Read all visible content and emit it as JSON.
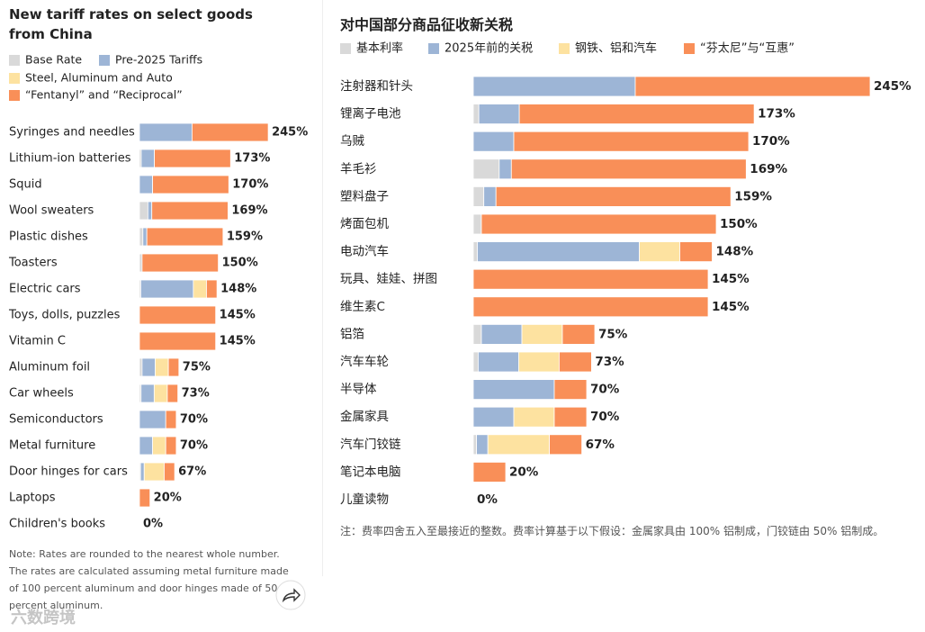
{
  "chart_data": [
    {
      "type": "bar",
      "orientation": "horizontal",
      "stacked": true,
      "title": "New tariff rates on select goods from China",
      "categories": [
        "Syringes and needles",
        "Lithium-ion batteries",
        "Squid",
        "Wool sweaters",
        "Plastic dishes",
        "Toasters",
        "Electric cars",
        "Toys, dolls, puzzles",
        "Vitamin C",
        "Aluminum foil",
        "Car wheels",
        "Semiconductors",
        "Metal furniture",
        "Door hinges for cars",
        "Laptops",
        "Children's books"
      ],
      "series": [
        {
          "name": "Base Rate",
          "color": "#d9d9d9",
          "values": [
            0,
            3.4,
            0,
            16,
            6.5,
            5,
            2.5,
            0,
            0,
            5,
            3,
            0,
            0,
            2,
            0,
            0
          ]
        },
        {
          "name": "Pre-2025 Tariffs",
          "color": "#9db5d6",
          "values": [
            100,
            25,
            25,
            7.5,
            7.5,
            0,
            100,
            0,
            0,
            25,
            25,
            50,
            25,
            7,
            0,
            0
          ]
        },
        {
          "name": "Steel, Aluminum and Auto",
          "color": "#fde2a0",
          "values": [
            0,
            0,
            0,
            0,
            0,
            0,
            25,
            0,
            0,
            25,
            25,
            0,
            25,
            38,
            0,
            0
          ]
        },
        {
          "name": "“Fentanyl” and “Reciprocal”",
          "color": "#f98f58",
          "values": [
            145,
            145,
            145,
            145,
            145,
            145,
            20,
            145,
            145,
            20,
            20,
            20,
            20,
            20,
            20,
            0
          ]
        }
      ],
      "totals": [
        245,
        173,
        170,
        169,
        159,
        150,
        148,
        145,
        145,
        75,
        73,
        70,
        70,
        67,
        20,
        0
      ],
      "total_labels": [
        "245%",
        "173%",
        "170%",
        "169%",
        "159%",
        "150%",
        "148%",
        "145%",
        "145%",
        "75%",
        "73%",
        "70%",
        "70%",
        "67%",
        "20%",
        "0%"
      ],
      "note": "Note: Rates are rounded to the nearest whole number. The rates are calculated assuming metal furniture made of 100 percent aluminum and door hinges made of 50 percent aluminum."
    },
    {
      "type": "bar",
      "orientation": "horizontal",
      "stacked": true,
      "title": "对中国部分商品征收新关税",
      "categories": [
        "注射器和针头",
        "锂离子电池",
        "乌贼",
        "羊毛衫",
        "塑料盘子",
        "烤面包机",
        "电动汽车",
        "玩具、娃娃、拼图",
        "维生素C",
        "铝箔",
        "汽车车轮",
        "半导体",
        "金属家具",
        "汽车门铰链",
        "笔记本电脑",
        "儿童读物"
      ],
      "series": [
        {
          "name": "基本利率",
          "color": "#d9d9d9",
          "values": [
            0,
            3.4,
            0,
            16,
            6.5,
            5,
            2.5,
            0,
            0,
            5,
            3,
            0,
            0,
            2,
            0,
            0
          ]
        },
        {
          "name": "2025年前的关税",
          "color": "#9db5d6",
          "values": [
            100,
            25,
            25,
            7.5,
            7.5,
            0,
            100,
            0,
            0,
            25,
            25,
            50,
            25,
            7,
            0,
            0
          ]
        },
        {
          "name": "钢铁、铝和汽车",
          "color": "#fde2a0",
          "values": [
            0,
            0,
            0,
            0,
            0,
            0,
            25,
            0,
            0,
            25,
            25,
            0,
            25,
            38,
            0,
            0
          ]
        },
        {
          "name": "“芬太尼”与“互惠”",
          "color": "#f98f58",
          "values": [
            145,
            145,
            145,
            145,
            145,
            145,
            20,
            145,
            145,
            20,
            20,
            20,
            20,
            20,
            20,
            0
          ]
        }
      ],
      "totals": [
        245,
        173,
        170,
        169,
        159,
        150,
        148,
        145,
        145,
        75,
        73,
        70,
        70,
        67,
        20,
        0
      ],
      "total_labels": [
        "245%",
        "173%",
        "170%",
        "169%",
        "159%",
        "150%",
        "148%",
        "145%",
        "145%",
        "75%",
        "73%",
        "70%",
        "70%",
        "67%",
        "20%",
        "0%"
      ],
      "note": "注：费率四舍五入至最接近的整数。费率计算基于以下假设：金属家具由 100% 铝制成，门铰链由 50% 铝制成。"
    }
  ],
  "watermark": "六数跨境"
}
